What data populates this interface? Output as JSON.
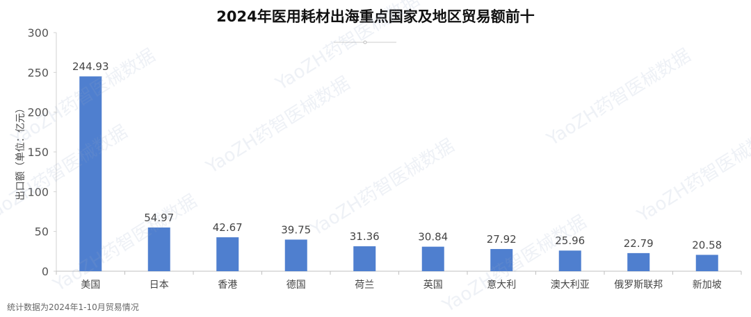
{
  "chart_data": {
    "type": "bar",
    "title": "2024年医用耗材出海重点国家及地区贸易额前十",
    "ylabel": "出口额（单位：亿元）",
    "xlabel": "",
    "categories": [
      "美国",
      "日本",
      "香港",
      "德国",
      "荷兰",
      "英国",
      "意大利",
      "澳大利亚",
      "俄罗斯联邦",
      "新加坡"
    ],
    "values": [
      244.93,
      54.97,
      42.67,
      39.75,
      31.36,
      30.84,
      27.92,
      25.96,
      22.79,
      20.58
    ],
    "ylim": [
      0,
      300
    ],
    "yticks": [
      0,
      50,
      100,
      150,
      200,
      250,
      300
    ],
    "grid": false,
    "bar_color": "#4f7fcf",
    "footnote": "统计数据为2024年1-10月贸易情况"
  },
  "watermark": "YaoZH药智医械数据"
}
